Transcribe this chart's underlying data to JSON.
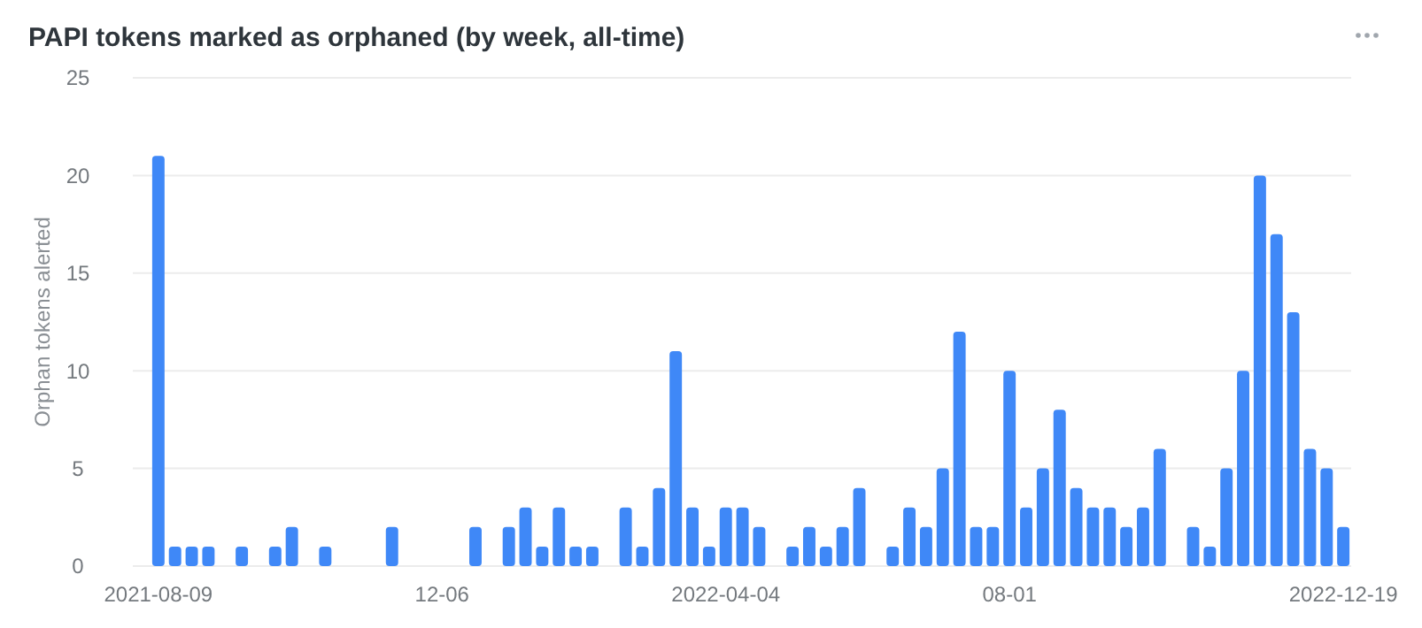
{
  "chart_data": {
    "type": "bar",
    "title": "PAPI tokens marked as orphaned (by week, all-time)",
    "ylabel": "Orphan tokens alerted",
    "categories": [
      "2021-08-09",
      null,
      null,
      null,
      null,
      null,
      null,
      null,
      null,
      null,
      null,
      null,
      null,
      null,
      null,
      null,
      null,
      "12-06",
      null,
      null,
      null,
      null,
      null,
      null,
      null,
      null,
      null,
      null,
      null,
      null,
      null,
      null,
      null,
      null,
      "2022-04-04",
      null,
      null,
      null,
      null,
      null,
      null,
      null,
      null,
      null,
      null,
      null,
      null,
      null,
      null,
      null,
      null,
      "08-01",
      null,
      null,
      null,
      null,
      null,
      null,
      null,
      null,
      null,
      null,
      null,
      null,
      null,
      null,
      null,
      null,
      null,
      null,
      null,
      "2022-12-19"
    ],
    "values": [
      21,
      1,
      1,
      1,
      0,
      1,
      0,
      1,
      2,
      0,
      1,
      0,
      0,
      0,
      2,
      0,
      0,
      0,
      0,
      2,
      0,
      2,
      3,
      1,
      3,
      1,
      1,
      0,
      3,
      1,
      4,
      11,
      3,
      1,
      3,
      3,
      2,
      0,
      1,
      2,
      1,
      2,
      4,
      0,
      1,
      3,
      2,
      5,
      12,
      2,
      2,
      10,
      3,
      5,
      8,
      4,
      3,
      3,
      2,
      3,
      6,
      0,
      2,
      1,
      5,
      10,
      20,
      17,
      13,
      6,
      5,
      2
    ],
    "color": "#3f88f7",
    "ylim": [
      0,
      25
    ],
    "yticks": [
      0,
      5,
      10,
      15,
      20,
      25
    ],
    "grid": "y"
  }
}
